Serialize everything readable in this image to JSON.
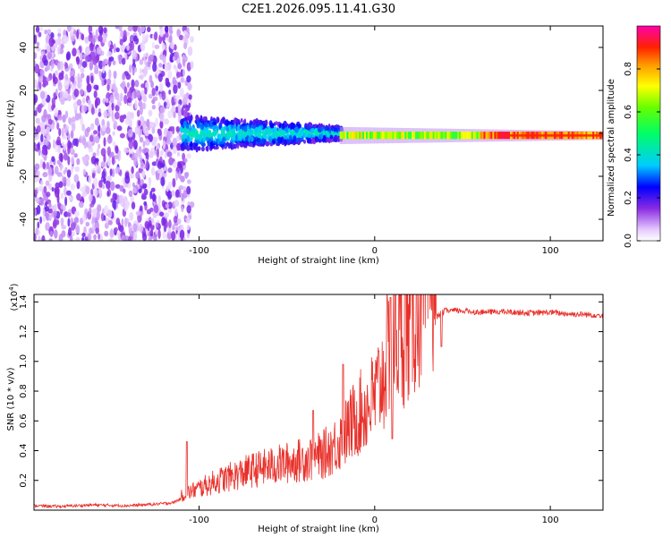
{
  "chart_data": [
    {
      "type": "heatmap",
      "title": "C2E1.2026.095.11.41.G30",
      "xlabel": "Height of straight line (km)",
      "ylabel": "Frequency (Hz)",
      "xlim": [
        -194,
        130
      ],
      "ylim": [
        -50,
        50
      ],
      "x_ticks": [
        -100,
        0,
        100
      ],
      "x_tick_labels": [
        "-100",
        "0",
        "100"
      ],
      "y_ticks": [
        -40,
        -20,
        0,
        20,
        40
      ],
      "y_tick_labels": [
        "-40",
        "-20",
        "0",
        "20",
        "40"
      ],
      "colorbar": {
        "label": "Normalized spectral amplitude",
        "range": [
          0,
          1
        ],
        "ticks": [
          0.0,
          0.2,
          0.4,
          0.6,
          0.8
        ],
        "tick_labels": [
          "0.0",
          "0.2",
          "0.4",
          "0.6",
          "0.8"
        ]
      },
      "regions": [
        {
          "name": "noise",
          "x_range": [
            -194,
            -105
          ],
          "freq_range": [
            -50,
            50
          ],
          "amplitude": 0.1
        },
        {
          "name": "onset",
          "x_range": [
            -110,
            -20
          ],
          "freq_center": 0,
          "freq_spread": 8,
          "amplitude": 0.3
        },
        {
          "name": "carrier",
          "x_range": [
            -20,
            130
          ],
          "freq_center": -1,
          "freq_spread": 2,
          "amplitude": 0.95
        }
      ]
    },
    {
      "type": "line",
      "xlabel": "Height of straight line (km)",
      "ylabel": "SNR (10 * v/v)",
      "y_multiplier_label": "(x10",
      "y_multiplier_exp": "4",
      "xlim": [
        -194,
        130
      ],
      "ylim": [
        0,
        14500
      ],
      "x_ticks": [
        -100,
        0,
        100
      ],
      "x_tick_labels": [
        "-100",
        "0",
        "100"
      ],
      "y_ticks": [
        2000,
        4000,
        6000,
        8000,
        10000,
        12000,
        14000
      ],
      "y_tick_labels": [
        "0.2",
        "0.4",
        "0.6",
        "0.8",
        "1.0",
        "1.2",
        "1.4"
      ],
      "color": "#e8302a",
      "series": [
        {
          "name": "SNR",
          "x": [
            -194,
            -180,
            -160,
            -140,
            -125,
            -115,
            -108,
            -100,
            -90,
            -80,
            -70,
            -60,
            -50,
            -40,
            -30,
            -25,
            -20,
            -15,
            -10,
            -5,
            0,
            5,
            10,
            15,
            20,
            25,
            30,
            35,
            40,
            50,
            60,
            70,
            80,
            90,
            100,
            110,
            120,
            130
          ],
          "values": [
            300,
            250,
            350,
            300,
            400,
            500,
            900,
            1200,
            1600,
            1900,
            2200,
            2400,
            2600,
            2800,
            3000,
            3400,
            3800,
            4500,
            5200,
            5600,
            6200,
            7500,
            9500,
            10000,
            10500,
            11800,
            12500,
            13000,
            13400,
            13400,
            13300,
            13350,
            13300,
            13250,
            13300,
            13200,
            13150,
            13100
          ]
        }
      ],
      "spikes": [
        {
          "x": -107,
          "value": 4600
        },
        {
          "x": -35,
          "value": 6700
        },
        {
          "x": -18,
          "value": 9800
        },
        {
          "x": 9,
          "value": 14300
        },
        {
          "x": 10,
          "value": 4800
        },
        {
          "x": 38,
          "value": 11000
        }
      ]
    }
  ]
}
